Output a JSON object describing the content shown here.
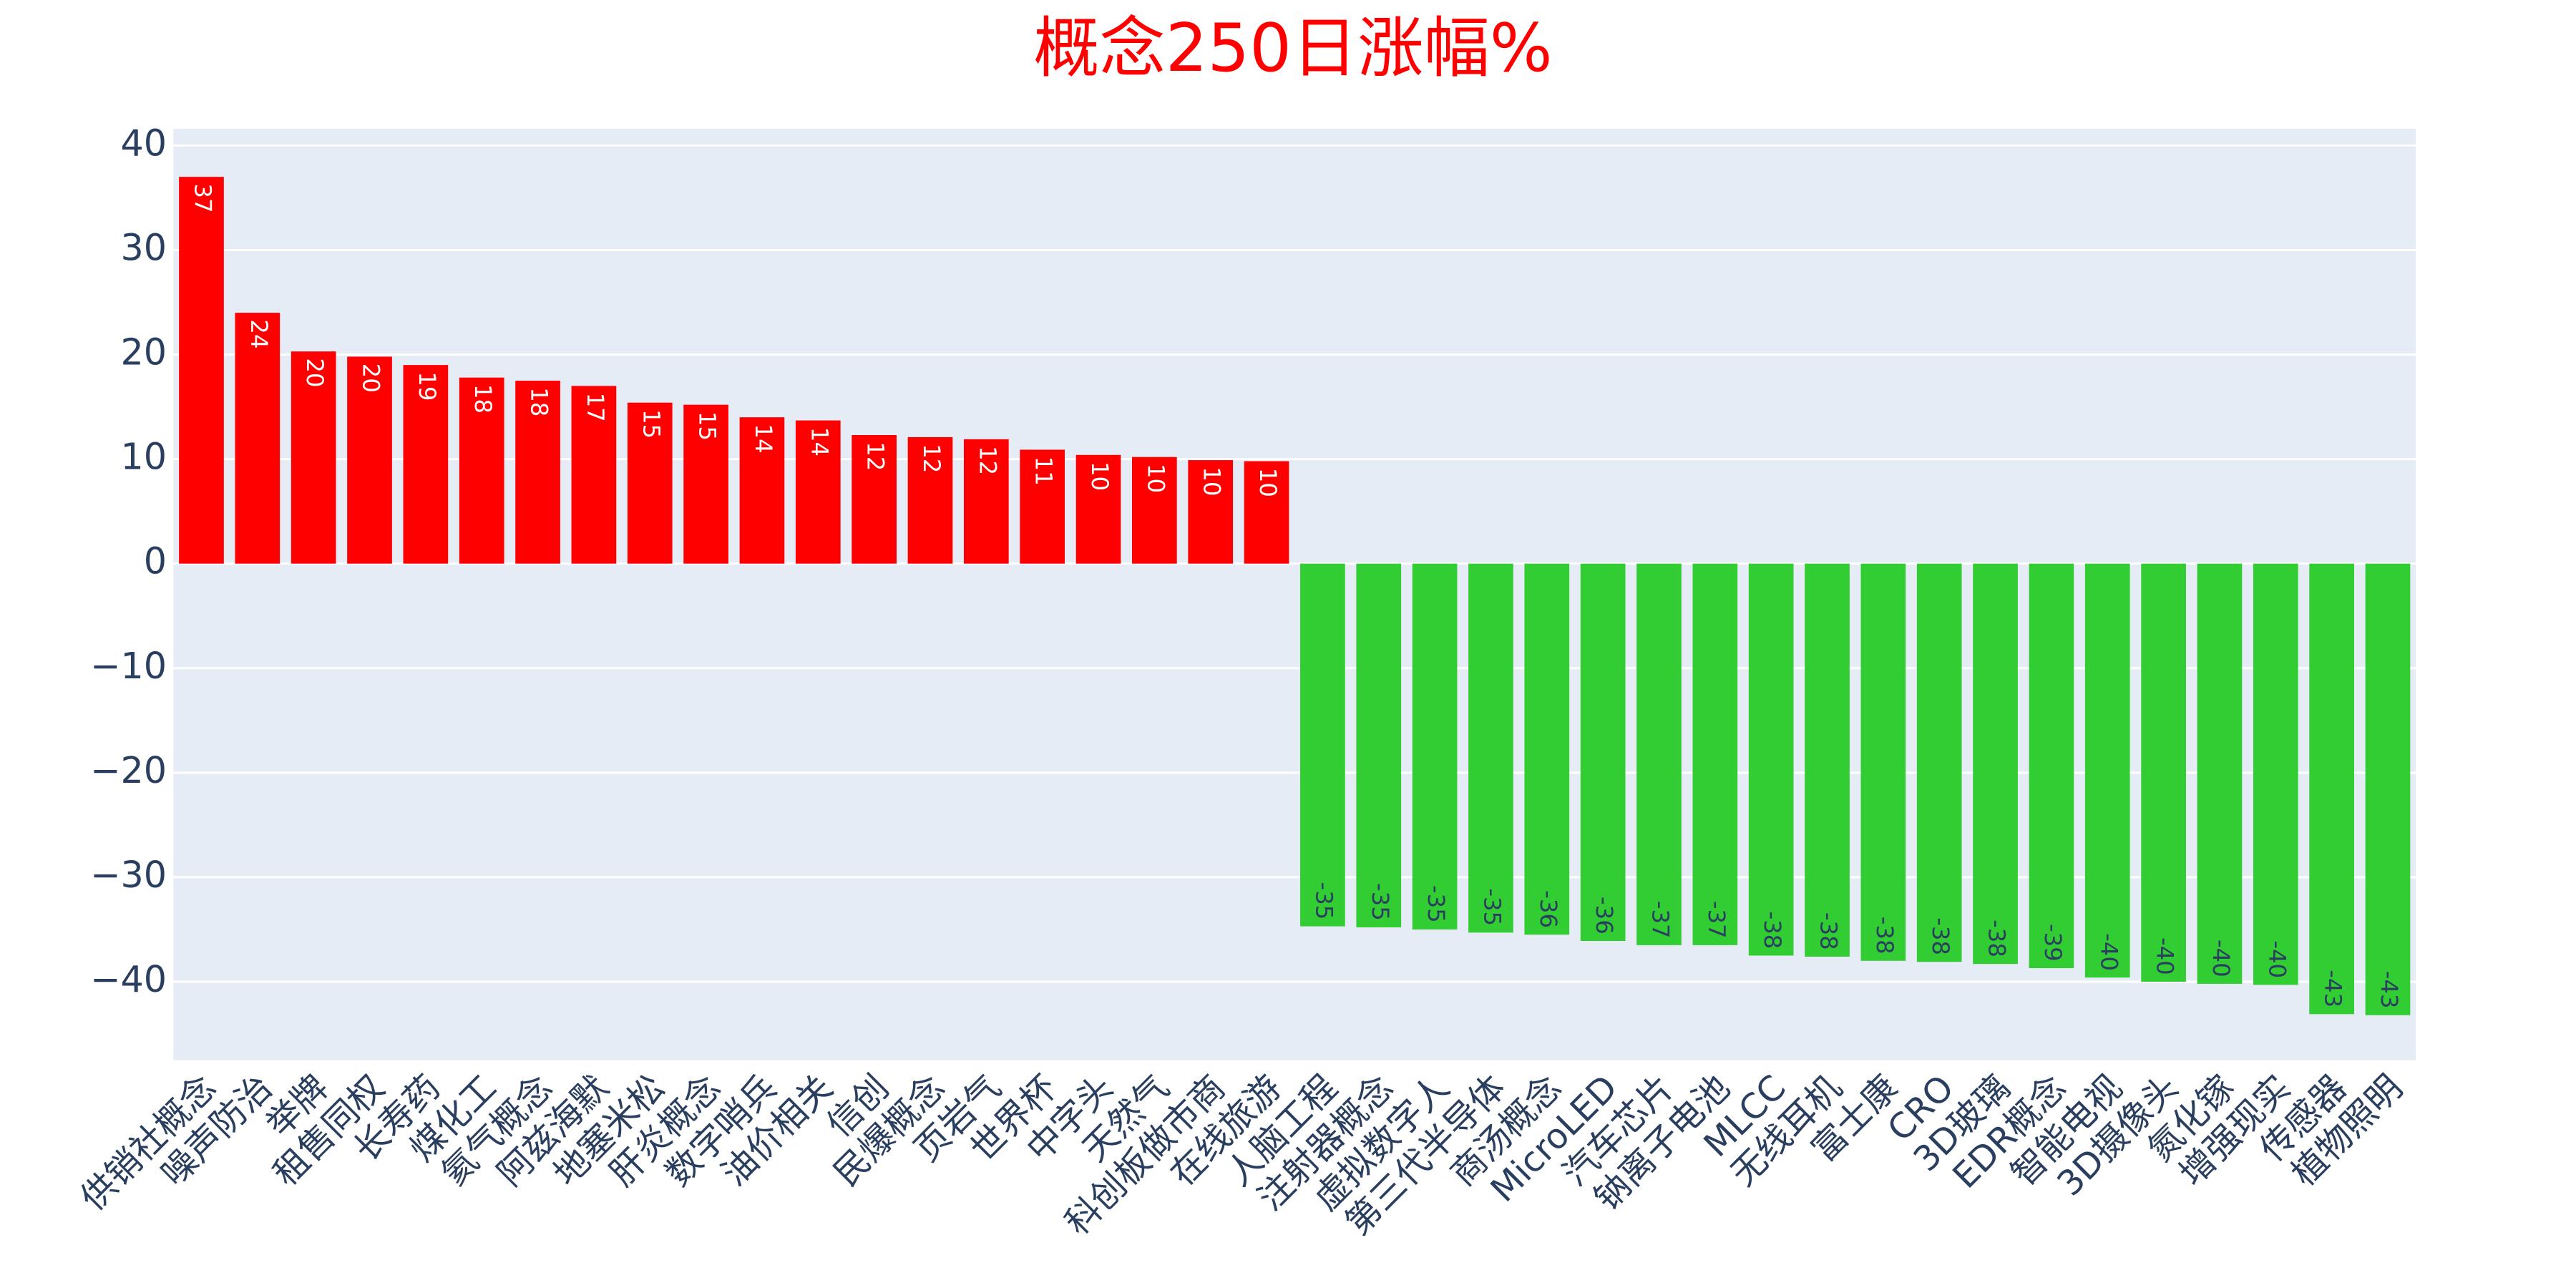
{
  "chart_data": {
    "type": "bar",
    "title": "概念250日涨幅%",
    "categories": [
      "供销社概念",
      "噪声防治",
      "举牌",
      "租售同权",
      "长寿药",
      "煤化工",
      "氦气概念",
      "阿兹海默",
      "地塞米松",
      "肝炎概念",
      "数字哨兵",
      "油价相关",
      "信创",
      "民爆概念",
      "页岩气",
      "世界杯",
      "中字头",
      "天然气",
      "科创板做市商",
      "在线旅游",
      "人脑工程",
      "注射器概念",
      "虚拟数字人",
      "第三代半导体",
      "商汤概念",
      "MicroLED",
      "汽车芯片",
      "钠离子电池",
      "MLCC",
      "无线耳机",
      "富士康",
      "CRO",
      "3D玻璃",
      "EDR概念",
      "智能电视",
      "3D摄像头",
      "氮化镓",
      "增强现实",
      "传感器",
      "植物照明"
    ],
    "values": [
      37,
      24,
      20.3,
      19.8,
      19,
      17.8,
      17.5,
      17,
      15.4,
      15.2,
      14,
      13.7,
      12.3,
      12.1,
      11.9,
      10.9,
      10.4,
      10.2,
      9.9,
      9.8,
      -34.7,
      -34.8,
      -35,
      -35.3,
      -35.5,
      -36.1,
      -36.5,
      -36.5,
      -37.5,
      -37.6,
      -38,
      -38.1,
      -38.3,
      -38.7,
      -39.6,
      -40,
      -40.2,
      -40.3,
      -43.1,
      -43.2
    ],
    "value_labels": [
      "37",
      "24",
      "20",
      "20",
      "19",
      "18",
      "18",
      "17",
      "15",
      "15",
      "14",
      "14",
      "12",
      "12",
      "12",
      "11",
      "10",
      "10",
      "10",
      "10",
      "-35",
      "-35",
      "-35",
      "-35",
      "-36",
      "-36",
      "-37",
      "-37",
      "-38",
      "-38",
      "-38",
      "-38",
      "-38",
      "-39",
      "-40",
      "-40",
      "-40",
      "-40",
      "-43",
      "-43"
    ],
    "positive_color": "#ff0000",
    "negative_color": "#32cd32",
    "ylim": [
      -47.5,
      41.6
    ],
    "yticks": [
      {
        "value": -40,
        "label": "−40"
      },
      {
        "value": -30,
        "label": "−30"
      },
      {
        "value": -20,
        "label": "−20"
      },
      {
        "value": -10,
        "label": "−10"
      },
      0,
      10,
      20,
      30,
      40
    ],
    "grid": true
  }
}
